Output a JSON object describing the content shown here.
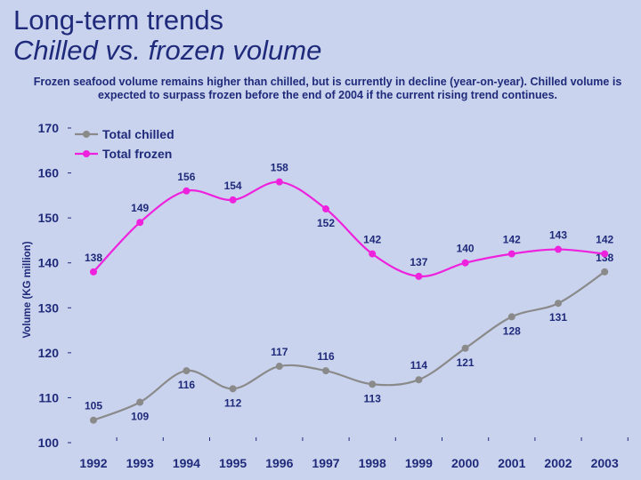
{
  "header": {
    "title": "Long-term trends",
    "subtitle": "Chilled vs. frozen volume",
    "description": "Frozen seafood volume remains higher than chilled, but is currently in decline (year-on-year). Chilled volume is expected to surpass frozen before the end of 2004 if the current rising trend continues."
  },
  "chart_data": {
    "type": "line",
    "x": [
      "1992",
      "1993",
      "1994",
      "1995",
      "1996",
      "1997",
      "1998",
      "1999",
      "2000",
      "2001",
      "2002",
      "2003"
    ],
    "ylabel": "Volume (KG million)",
    "xlabel": "",
    "ylim": [
      100,
      170
    ],
    "yticks": [
      100,
      110,
      120,
      130,
      140,
      150,
      160,
      170
    ],
    "grid": false,
    "legend_position": "top-left",
    "series": [
      {
        "name": "Total chilled",
        "color": "#8a8a8a",
        "values": [
          105,
          109,
          116,
          112,
          117,
          116,
          113,
          114,
          121,
          128,
          131,
          138
        ]
      },
      {
        "name": "Total frozen",
        "color": "#ee22dd",
        "values": [
          138,
          149,
          156,
          154,
          158,
          152,
          142,
          137,
          140,
          142,
          143,
          142
        ]
      }
    ]
  },
  "colors": {
    "background": "#c9d3ee",
    "text": "#1f2a7a",
    "axis": "#1f2a7a"
  }
}
